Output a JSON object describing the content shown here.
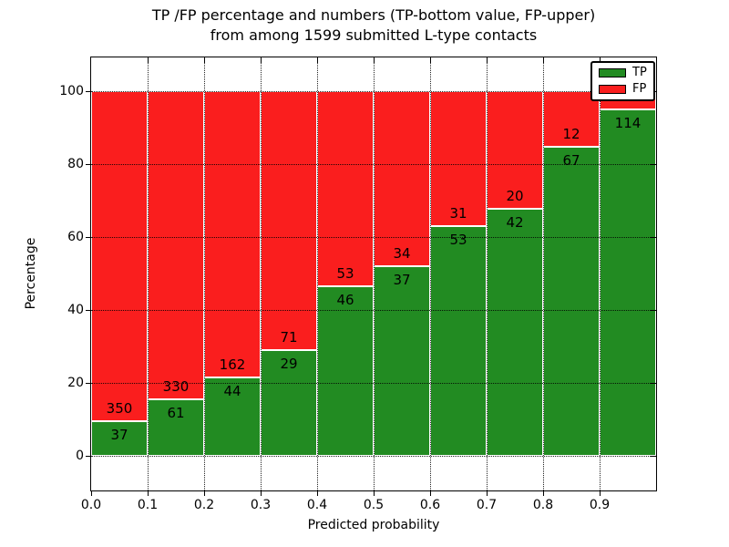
{
  "title": {
    "line1": "TP /FP percentage and numbers (TP-bottom value, FP-upper)",
    "line2": "from among 1599 submitted L-type contacts"
  },
  "axes": {
    "xlabel": "Predicted probability",
    "ylabel": "Percentage",
    "x_tick_labels": [
      "0.0",
      "0.1",
      "0.2",
      "0.3",
      "0.4",
      "0.5",
      "0.6",
      "0.7",
      "0.8",
      "0.9"
    ],
    "y_tick_labels": [
      "0",
      "20",
      "40",
      "60",
      "80",
      "100"
    ],
    "y_tick_values": [
      0,
      20,
      40,
      60,
      80,
      100
    ],
    "grid_style": "dotted"
  },
  "legend": {
    "position": "upper-right",
    "entries": [
      {
        "label": "TP",
        "color": "#228B22"
      },
      {
        "label": "FP",
        "color": "#FA1E1E"
      }
    ]
  },
  "chart_data": {
    "type": "bar",
    "stacked": true,
    "title": "TP /FP percentage and numbers (TP-bottom value, FP-upper) from among 1599 submitted L-type contacts",
    "xlabel": "Predicted probability",
    "ylabel": "Percentage",
    "xlim": [
      0.0,
      1.0
    ],
    "ylim": [
      -9.5,
      109.5
    ],
    "grid": true,
    "legend_position": "upper-right",
    "bin_edges": [
      0.0,
      0.1,
      0.2,
      0.3,
      0.4,
      0.5,
      0.6,
      0.7,
      0.8,
      0.9,
      1.0
    ],
    "series": [
      {
        "name": "TP",
        "color": "#228B22",
        "counts": [
          37,
          61,
          44,
          29,
          46,
          37,
          53,
          42,
          67,
          114
        ],
        "percent": [
          9.6,
          15.6,
          21.4,
          29.0,
          46.5,
          52.1,
          63.1,
          67.7,
          84.8,
          95.0
        ]
      },
      {
        "name": "FP",
        "color": "#FA1E1E",
        "counts": [
          350,
          330,
          162,
          71,
          53,
          34,
          31,
          20,
          12,
          null
        ],
        "percent": [
          90.4,
          84.4,
          78.6,
          71.0,
          53.5,
          47.9,
          36.9,
          32.3,
          15.2,
          5.0
        ]
      }
    ]
  }
}
